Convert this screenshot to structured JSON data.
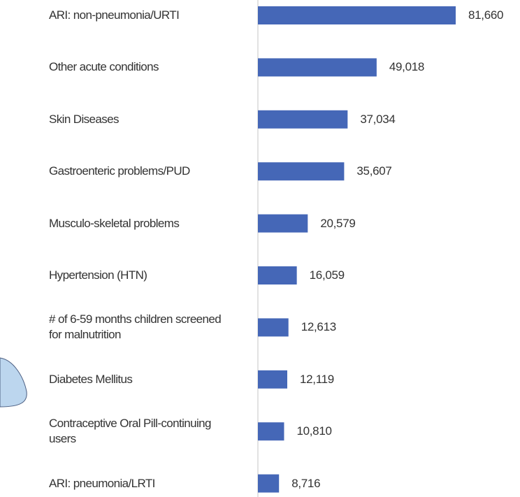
{
  "chart_data": {
    "type": "bar",
    "orientation": "horizontal",
    "color": "#4567b7",
    "categories": [
      "ARI: non-pneumonia/URTI",
      "Other acute conditions",
      "Skin Diseases",
      "Gastroenteric problems/PUD",
      "Musculo-skeletal problems",
      "Hypertension (HTN)",
      "# of 6-59 months children screened for malnutrition",
      "Diabetes Mellitus",
      "Contraceptive Oral Pill-continuing users",
      "ARI: pneumonia/LRTI"
    ],
    "values": [
      81660,
      49018,
      37034,
      35607,
      20579,
      16059,
      12613,
      12119,
      10810,
      8716
    ],
    "value_labels": [
      "81,660",
      "49,018",
      "37,034",
      "35,607",
      "20,579",
      "16,059",
      "12,613",
      "12,119",
      "10,810",
      "8,716"
    ]
  }
}
